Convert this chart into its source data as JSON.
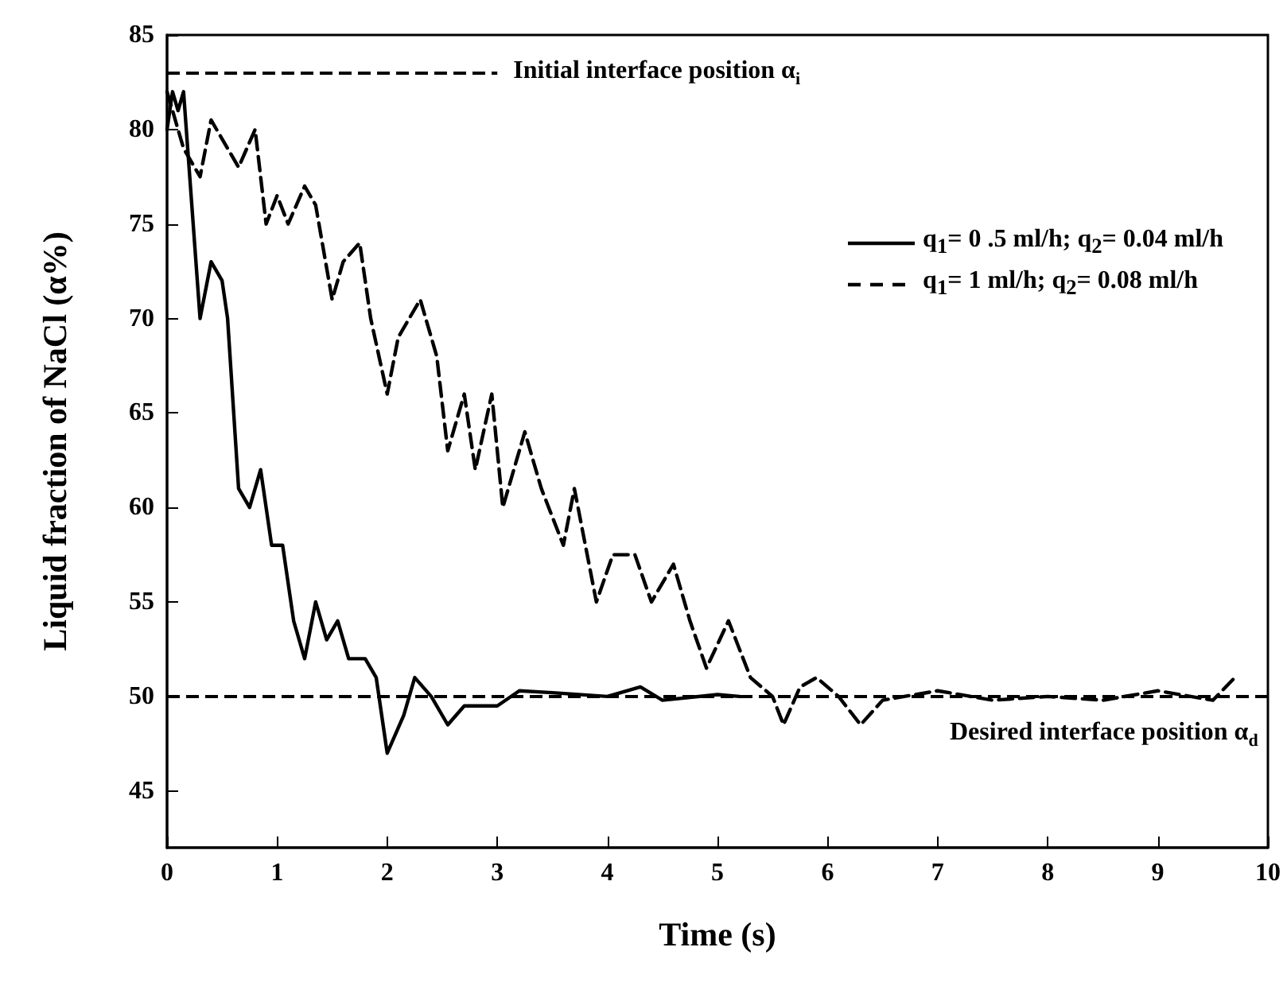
{
  "chart_data": {
    "type": "line",
    "xlabel": "Time (s)",
    "ylabel": "Liquid fraction of NaCl (α%)",
    "xlim": [
      0,
      10
    ],
    "xticks": [
      0,
      1,
      2,
      3,
      4,
      5,
      6,
      7,
      8,
      9,
      10
    ],
    "ylim": [
      42,
      85
    ],
    "yticks": [
      45,
      50,
      55,
      60,
      65,
      70,
      75,
      80,
      85
    ],
    "grid": false,
    "legend": "top right",
    "marker": "none",
    "series": [
      {
        "name": "q$_{1}$= 0 .5 ml/h; q$_{2}$= 0.04 ml/h",
        "color": "#000000",
        "line_style": "solid",
        "x": [
          0,
          0.05,
          0.1,
          0.15,
          0.2,
          0.3,
          0.4,
          0.5,
          0.55,
          0.65,
          0.75,
          0.85,
          0.95,
          1.05,
          1.15,
          1.25,
          1.35,
          1.45,
          1.55,
          1.65,
          1.8,
          1.9,
          2.0,
          2.15,
          2.25,
          2.4,
          2.55,
          2.7,
          3.0,
          3.2,
          3.5,
          4.0,
          4.3,
          4.5,
          5.0,
          5.2
        ],
        "values": [
          80,
          82,
          81,
          82,
          78,
          70,
          73,
          72,
          70,
          61,
          60,
          62,
          58,
          58,
          54,
          52,
          55,
          53,
          54,
          52,
          52,
          51,
          47,
          49,
          51,
          50,
          48.5,
          49.5,
          49.5,
          50.3,
          50.2,
          50,
          50.5,
          49.8,
          50.1,
          50
        ]
      },
      {
        "name": "q$_{1}$= 1 ml/h; q$_{2}$= 0.08 ml/h",
        "color": "#000000",
        "line_style": "dashed",
        "x": [
          0,
          0.15,
          0.3,
          0.4,
          0.55,
          0.65,
          0.8,
          0.9,
          1.0,
          1.1,
          1.25,
          1.35,
          1.5,
          1.6,
          1.75,
          1.85,
          2.0,
          2.1,
          2.3,
          2.45,
          2.55,
          2.7,
          2.8,
          2.95,
          3.05,
          3.25,
          3.4,
          3.6,
          3.7,
          3.9,
          4.05,
          4.25,
          4.4,
          4.6,
          4.75,
          4.9,
          5.1,
          5.3,
          5.5,
          5.6,
          5.75,
          5.9,
          6.1,
          6.3,
          6.5,
          7,
          7.5,
          8,
          8.5,
          9,
          9.5,
          9.7
        ],
        "values": [
          82,
          79,
          77.5,
          80.5,
          79,
          78,
          80,
          75,
          76.5,
          75,
          77,
          76,
          71,
          73,
          74,
          70,
          66,
          69,
          71,
          68,
          63,
          66,
          62,
          66,
          60,
          64,
          61,
          58,
          61,
          55,
          57.5,
          57.5,
          55,
          57,
          54,
          51.5,
          54,
          51,
          50,
          48.5,
          50.5,
          51,
          50,
          48.5,
          49.8,
          50.3,
          49.8,
          50,
          49.8,
          50.3,
          49.8,
          51
        ]
      }
    ],
    "ref_lines": [
      {
        "axis": "y",
        "value": 83,
        "label": "Initial interface position α$_{i}$",
        "color": "#000000",
        "line_style": "dashed"
      },
      {
        "axis": "y",
        "value": 50,
        "label": "Desired interface position α$_{d}$",
        "color": "#000000",
        "line_style": "dashed"
      }
    ]
  }
}
